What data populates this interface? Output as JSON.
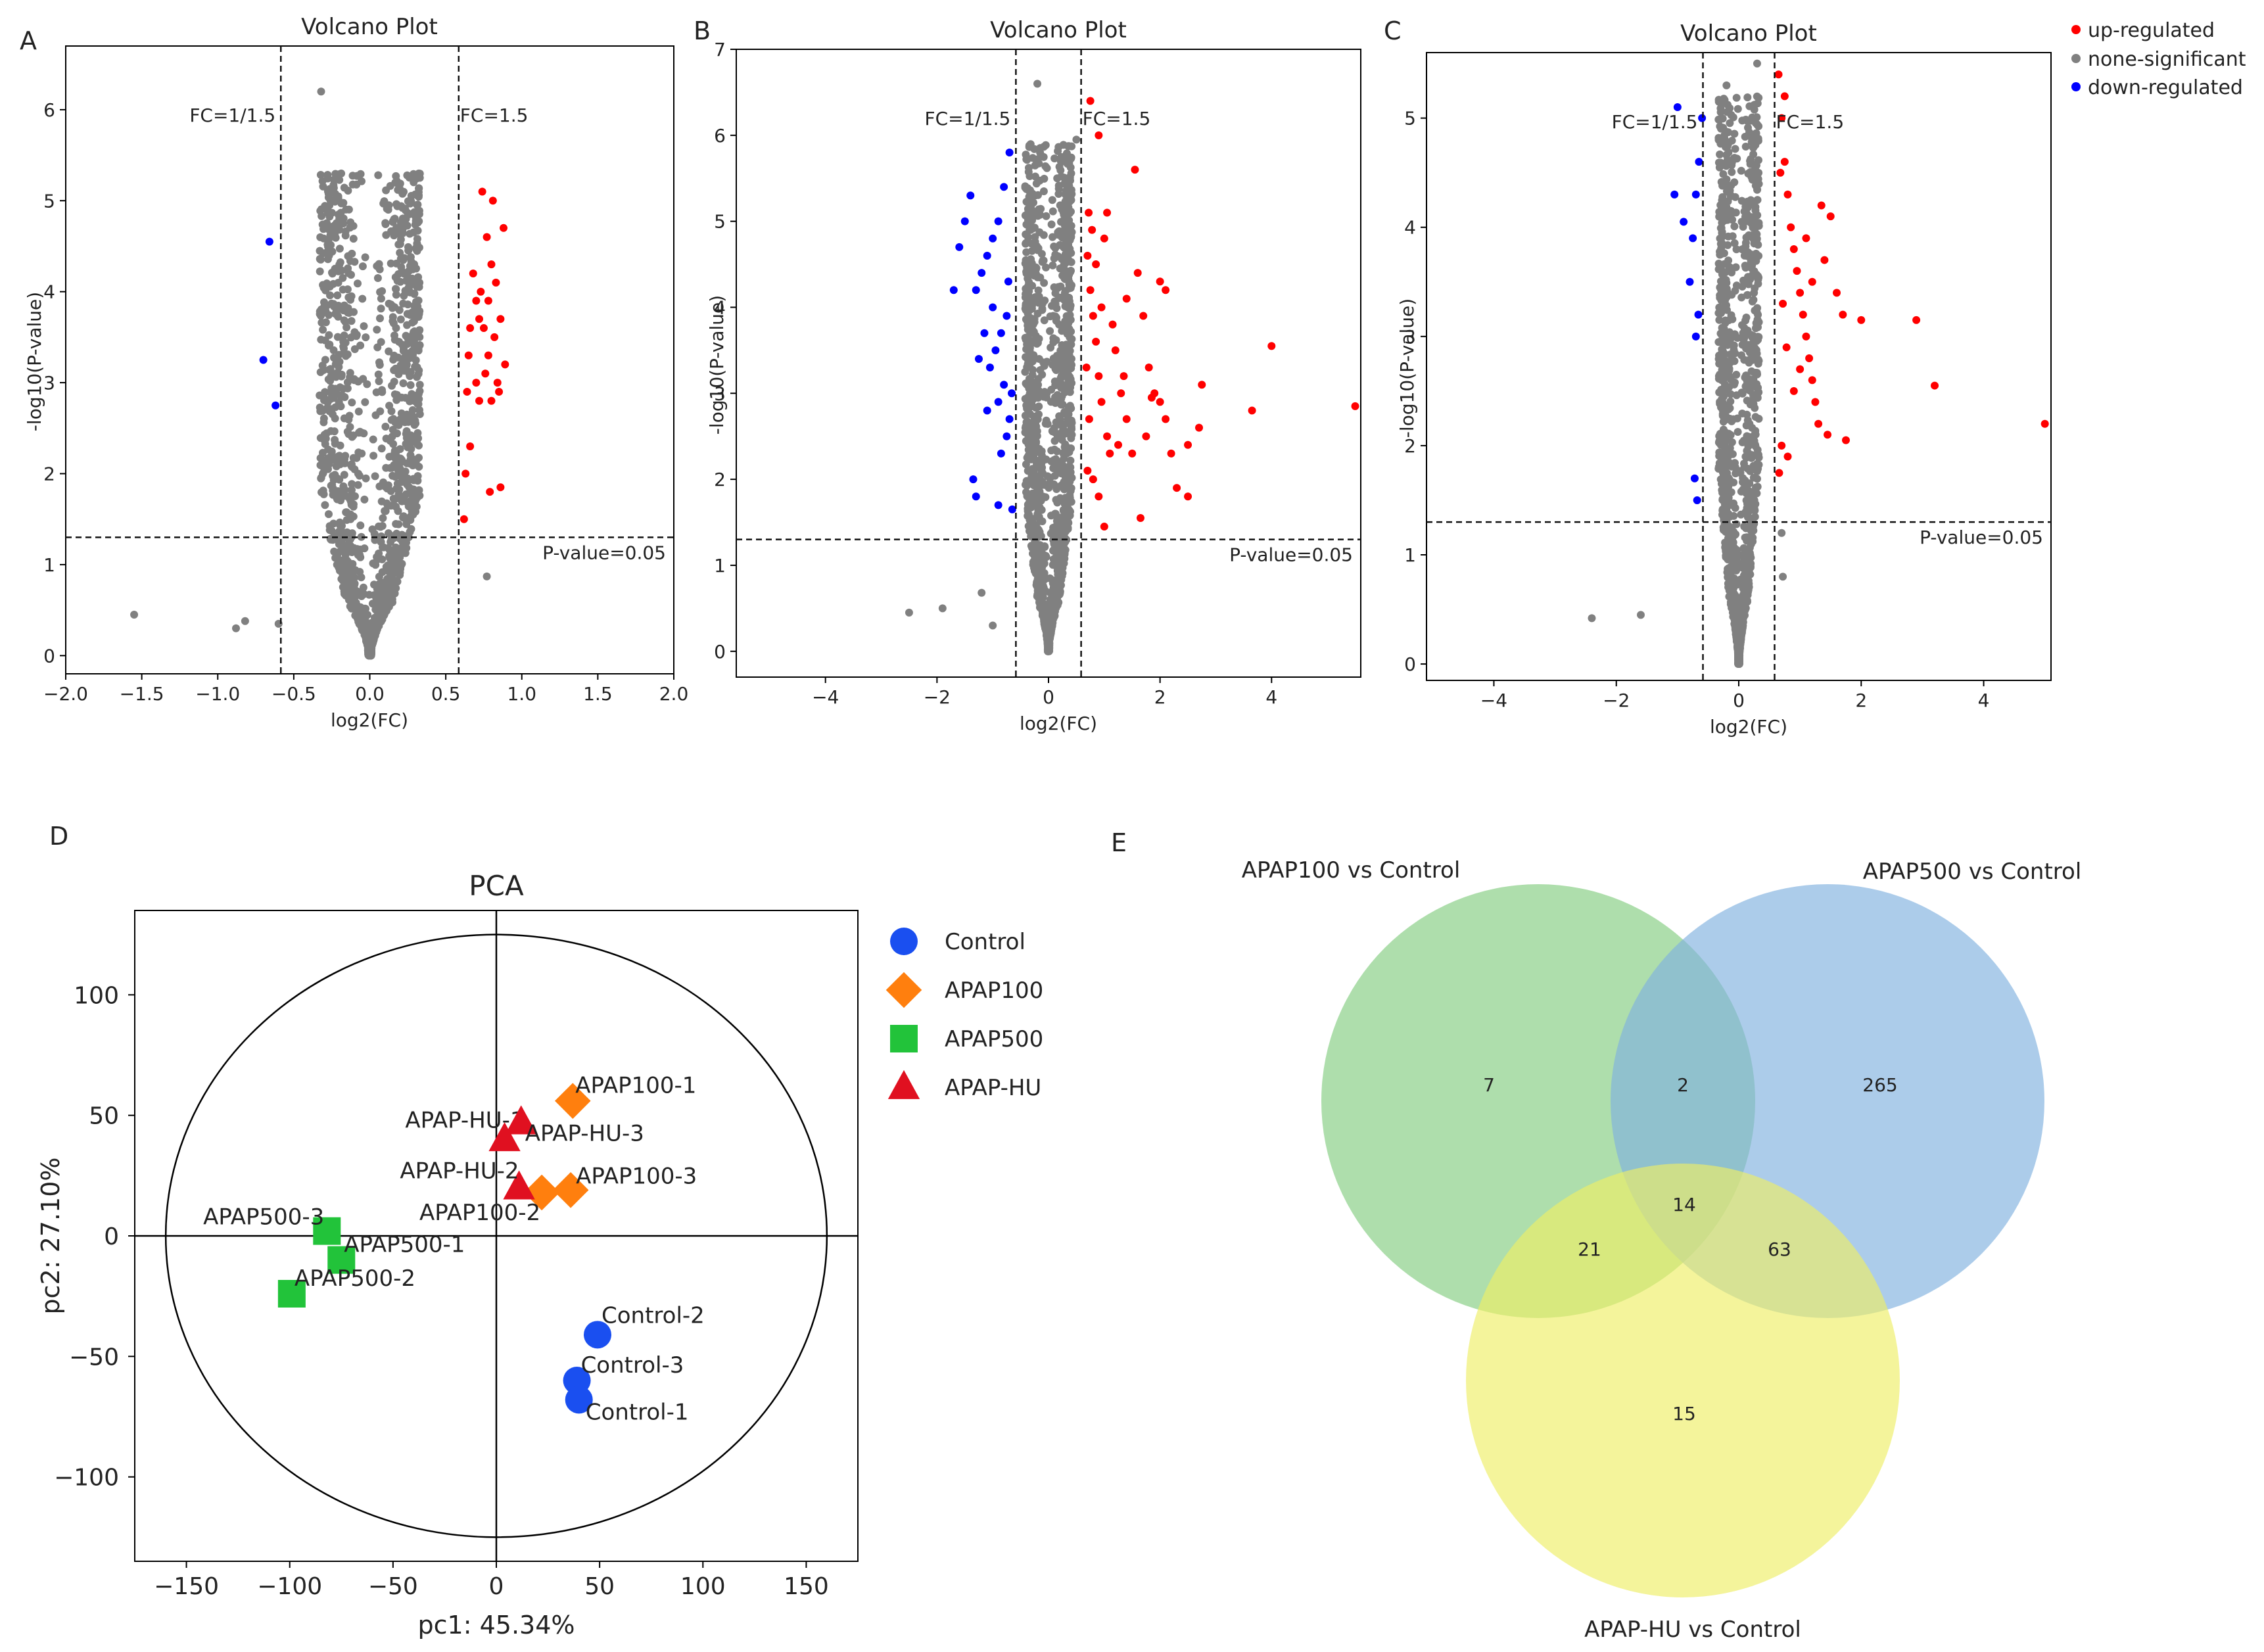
{
  "chart_data": [
    {
      "panel": "A",
      "type": "scatter",
      "title": "Volcano Plot",
      "xlabel": "log2(FC)",
      "ylabel": "-log10(P-value)",
      "xlim": [
        -2.0,
        2.0
      ],
      "ylim": [
        -0.2,
        6.7
      ],
      "xticks": [
        -2.0,
        -1.5,
        -1.0,
        -0.5,
        0.0,
        0.5,
        1.0,
        1.5,
        2.0
      ],
      "xtick_labels": [
        "−2.0",
        "−1.5",
        "−1.0",
        "−0.5",
        "0.0",
        "0.5",
        "1.0",
        "1.5",
        "2.0"
      ],
      "yticks": [
        0,
        1,
        2,
        3,
        4,
        5,
        6
      ],
      "fc_lines": [
        -0.585,
        0.585
      ],
      "fc_labels": [
        "FC=1/1.5",
        "FC=1.5"
      ],
      "p_line": 1.3,
      "p_label": "P-value=0.05",
      "ns_cloud": {
        "xspread": 0.33,
        "ymax": 5.3,
        "count": 1400
      },
      "up": [
        [
          0.62,
          1.5
        ],
        [
          0.63,
          2.0
        ],
        [
          0.64,
          2.9
        ],
        [
          0.65,
          3.3
        ],
        [
          0.66,
          3.6
        ],
        [
          0.68,
          4.2
        ],
        [
          0.7,
          3.9
        ],
        [
          0.7,
          3.0
        ],
        [
          0.72,
          2.8
        ],
        [
          0.73,
          4.0
        ],
        [
          0.74,
          5.1
        ],
        [
          0.75,
          3.6
        ],
        [
          0.76,
          3.1
        ],
        [
          0.77,
          4.6
        ],
        [
          0.78,
          3.9
        ],
        [
          0.78,
          3.3
        ],
        [
          0.8,
          4.3
        ],
        [
          0.8,
          2.8
        ],
        [
          0.81,
          5.0
        ],
        [
          0.82,
          3.5
        ],
        [
          0.83,
          4.1
        ],
        [
          0.84,
          3.0
        ],
        [
          0.85,
          2.9
        ],
        [
          0.86,
          3.7
        ],
        [
          0.88,
          4.7
        ],
        [
          0.89,
          3.2
        ],
        [
          0.79,
          1.8
        ],
        [
          0.86,
          1.85
        ],
        [
          0.66,
          2.3
        ],
        [
          0.72,
          3.7
        ]
      ],
      "down": [
        [
          -0.66,
          4.55
        ],
        [
          -0.7,
          3.25
        ],
        [
          -0.62,
          2.75
        ]
      ],
      "ns_extra": [
        [
          -1.55,
          0.45
        ],
        [
          -0.88,
          0.3
        ],
        [
          -0.82,
          0.38
        ],
        [
          -0.6,
          0.35
        ],
        [
          -0.32,
          6.2
        ],
        [
          0.77,
          0.87
        ]
      ]
    },
    {
      "panel": "B",
      "type": "scatter",
      "title": "Volcano Plot",
      "xlabel": "log2(FC)",
      "ylabel": "-log10(P-value)",
      "xlim": [
        -5.6,
        5.6
      ],
      "ylim": [
        -0.3,
        7.0
      ],
      "xticks": [
        -4,
        -2,
        0,
        2,
        4
      ],
      "xtick_labels": [
        "−4",
        "−2",
        "0",
        "2",
        "4"
      ],
      "yticks": [
        0,
        1,
        2,
        3,
        4,
        5,
        6,
        7
      ],
      "fc_lines": [
        -0.585,
        0.585
      ],
      "fc_labels": [
        "FC=1/1.5",
        "FC=1.5"
      ],
      "p_line": 1.3,
      "p_label": "P-value=0.05",
      "ns_cloud": {
        "xspread": 0.42,
        "ymax": 5.9,
        "count": 1400
      },
      "up": [
        [
          0.7,
          4.6
        ],
        [
          0.75,
          4.2
        ],
        [
          0.8,
          3.9
        ],
        [
          0.85,
          3.6
        ],
        [
          0.9,
          3.2
        ],
        [
          0.95,
          2.9
        ],
        [
          1.0,
          4.8
        ],
        [
          1.05,
          2.5
        ],
        [
          1.1,
          2.3
        ],
        [
          0.7,
          2.1
        ],
        [
          0.8,
          2.0
        ],
        [
          0.9,
          1.8
        ],
        [
          1.2,
          3.5
        ],
        [
          1.3,
          3.0
        ],
        [
          1.4,
          2.7
        ],
        [
          1.5,
          2.3
        ],
        [
          1.6,
          4.4
        ],
        [
          1.7,
          3.9
        ],
        [
          1.8,
          3.3
        ],
        [
          1.9,
          3.0
        ],
        [
          2.0,
          2.9
        ],
        [
          2.1,
          2.7
        ],
        [
          2.2,
          2.3
        ],
        [
          2.3,
          1.9
        ],
        [
          2.5,
          1.8
        ],
        [
          0.75,
          6.4
        ],
        [
          0.9,
          6.0
        ],
        [
          1.55,
          5.6
        ],
        [
          2.0,
          4.3
        ],
        [
          2.1,
          4.2
        ],
        [
          4.0,
          3.55
        ],
        [
          3.65,
          2.8
        ],
        [
          5.5,
          2.85
        ],
        [
          1.75,
          2.5
        ],
        [
          1.65,
          1.55
        ],
        [
          1.0,
          1.45
        ],
        [
          2.75,
          3.1
        ],
        [
          0.72,
          5.1
        ],
        [
          0.78,
          4.9
        ],
        [
          0.85,
          4.5
        ],
        [
          0.95,
          4.0
        ],
        [
          1.15,
          3.8
        ],
        [
          1.25,
          2.4
        ],
        [
          1.35,
          3.2
        ],
        [
          2.5,
          2.4
        ],
        [
          2.7,
          2.6
        ],
        [
          0.68,
          3.3
        ],
        [
          0.73,
          2.7
        ],
        [
          1.05,
          5.1
        ],
        [
          1.4,
          4.1
        ],
        [
          1.85,
          2.95
        ]
      ],
      "down": [
        [
          -0.7,
          5.8
        ],
        [
          -0.8,
          5.4
        ],
        [
          -0.9,
          5.0
        ],
        [
          -1.0,
          4.8
        ],
        [
          -1.1,
          4.6
        ],
        [
          -1.2,
          4.4
        ],
        [
          -1.3,
          4.2
        ],
        [
          -0.75,
          3.9
        ],
        [
          -0.85,
          3.7
        ],
        [
          -0.95,
          3.5
        ],
        [
          -1.05,
          3.3
        ],
        [
          -0.8,
          3.1
        ],
        [
          -0.9,
          2.9
        ],
        [
          -0.7,
          2.7
        ],
        [
          -0.75,
          2.5
        ],
        [
          -0.85,
          2.3
        ],
        [
          -1.4,
          5.3
        ],
        [
          -1.5,
          5.0
        ],
        [
          -1.6,
          4.7
        ],
        [
          -1.7,
          4.2
        ],
        [
          -0.9,
          1.7
        ],
        [
          -1.35,
          2.0
        ],
        [
          -1.3,
          1.8
        ],
        [
          -0.65,
          1.65
        ],
        [
          -0.72,
          4.3
        ],
        [
          -1.15,
          3.7
        ],
        [
          -1.25,
          3.4
        ],
        [
          -0.66,
          3.0
        ],
        [
          -1.0,
          4.0
        ],
        [
          -1.1,
          2.8
        ]
      ],
      "ns_extra": [
        [
          -2.5,
          0.45
        ],
        [
          -1.9,
          0.5
        ],
        [
          -1.2,
          0.68
        ],
        [
          -0.2,
          6.6
        ],
        [
          0.5,
          5.95
        ],
        [
          -1.0,
          0.3
        ]
      ]
    },
    {
      "panel": "C",
      "type": "scatter",
      "title": "Volcano Plot",
      "xlabel": "log2(FC)",
      "ylabel": "-log10(P-value)",
      "xlim": [
        -5.1,
        5.1
      ],
      "ylim": [
        -0.15,
        5.6
      ],
      "xticks": [
        -4,
        -2,
        0,
        2,
        4
      ],
      "xtick_labels": [
        "−4",
        "−2",
        "0",
        "2",
        "4"
      ],
      "yticks": [
        0,
        1,
        2,
        3,
        4,
        5
      ],
      "fc_lines": [
        -0.585,
        0.585
      ],
      "fc_labels": [
        "FC=1/1.5",
        "FC=1.5"
      ],
      "p_line": 1.3,
      "p_label": "P-value=0.05",
      "ns_cloud": {
        "xspread": 0.33,
        "ymax": 5.2,
        "count": 1200
      },
      "up": [
        [
          0.65,
          5.4
        ],
        [
          0.7,
          5.0
        ],
        [
          0.75,
          4.6
        ],
        [
          0.8,
          4.3
        ],
        [
          0.85,
          4.0
        ],
        [
          0.9,
          3.8
        ],
        [
          0.95,
          3.6
        ],
        [
          1.0,
          3.4
        ],
        [
          1.05,
          3.2
        ],
        [
          1.1,
          3.0
        ],
        [
          1.15,
          2.8
        ],
        [
          1.2,
          2.6
        ],
        [
          1.25,
          2.4
        ],
        [
          1.3,
          2.2
        ],
        [
          0.7,
          2.0
        ],
        [
          0.8,
          1.9
        ],
        [
          1.35,
          4.2
        ],
        [
          1.5,
          4.1
        ],
        [
          1.4,
          3.7
        ],
        [
          1.6,
          3.4
        ],
        [
          1.7,
          3.2
        ],
        [
          2.0,
          3.15
        ],
        [
          2.9,
          3.15
        ],
        [
          3.2,
          2.55
        ],
        [
          5.0,
          2.2
        ],
        [
          1.75,
          2.05
        ],
        [
          1.45,
          2.1
        ],
        [
          0.68,
          4.5
        ],
        [
          0.72,
          3.3
        ],
        [
          0.78,
          2.9
        ],
        [
          0.9,
          2.5
        ],
        [
          1.0,
          2.7
        ],
        [
          1.1,
          3.9
        ],
        [
          1.2,
          3.5
        ],
        [
          0.66,
          1.75
        ],
        [
          0.75,
          5.2
        ]
      ],
      "down": [
        [
          -0.6,
          5.0
        ],
        [
          -0.65,
          4.6
        ],
        [
          -0.7,
          4.3
        ],
        [
          -0.75,
          3.9
        ],
        [
          -0.8,
          3.5
        ],
        [
          -0.66,
          3.2
        ],
        [
          -0.7,
          3.0
        ],
        [
          -0.72,
          1.7
        ],
        [
          -0.68,
          1.5
        ],
        [
          -1.0,
          5.1
        ],
        [
          -1.05,
          4.3
        ],
        [
          -0.9,
          4.05
        ]
      ],
      "ns_extra": [
        [
          -2.4,
          0.42
        ],
        [
          -1.6,
          0.45
        ],
        [
          -0.2,
          5.3
        ],
        [
          0.3,
          5.5
        ],
        [
          0.7,
          1.2
        ],
        [
          0.72,
          0.8
        ]
      ]
    },
    {
      "panel": "D",
      "type": "scatter",
      "title": "PCA",
      "xlabel": "pc1: 45.34%",
      "ylabel": "pc2: 27.10%",
      "xlim": [
        -175,
        175
      ],
      "ylim": [
        -135,
        135
      ],
      "xticks": [
        -150,
        -100,
        -50,
        0,
        50,
        100,
        150
      ],
      "xtick_labels": [
        "−150",
        "−100",
        "−50",
        "0",
        "50",
        "100",
        "150"
      ],
      "yticks": [
        -100,
        -50,
        0,
        50,
        100
      ],
      "ytick_labels": [
        "−100",
        "−50",
        "0",
        "50",
        "100"
      ],
      "ellipse": {
        "rx": 160,
        "ry": 125
      },
      "series": [
        {
          "name": "Control",
          "color": "#1a4ff0",
          "marker": "circle",
          "points": [
            {
              "label": "Control-2",
              "x": 49,
              "y": -41
            },
            {
              "label": "Control-3",
              "x": 39,
              "y": -60
            },
            {
              "label": "Control-1",
              "x": 40,
              "y": -68
            }
          ]
        },
        {
          "name": "APAP100",
          "color": "#ff7f0e",
          "marker": "diamond",
          "points": [
            {
              "label": "APAP100-1",
              "x": 37,
              "y": 56
            },
            {
              "label": "APAP100-3",
              "x": 36,
              "y": 19
            },
            {
              "label": "APAP100-2",
              "x": 22,
              "y": 18
            }
          ]
        },
        {
          "name": "APAP500",
          "color": "#22c33a",
          "marker": "square",
          "points": [
            {
              "label": "APAP500-3",
              "x": -82,
              "y": 2
            },
            {
              "label": "APAP500-1",
              "x": -75,
              "y": -10
            },
            {
              "label": "APAP500-2",
              "x": -99,
              "y": -24
            }
          ]
        },
        {
          "name": "APAP-HU",
          "color": "#e01020",
          "marker": "triangle",
          "points": [
            {
              "label": "APAP-HU-1",
              "x": 4,
              "y": 40
            },
            {
              "label": "APAP-HU-3",
              "x": 12,
              "y": 47
            },
            {
              "label": "APAP-HU-2",
              "x": 11,
              "y": 20
            }
          ]
        }
      ]
    },
    {
      "panel": "E",
      "type": "venn",
      "sets": [
        {
          "name": "APAP100 vs Control",
          "color": "#8fd18c"
        },
        {
          "name": "APAP500 vs Control",
          "color": "#7fb0de"
        },
        {
          "name": "APAP-HU vs Control",
          "color": "#eeee66"
        }
      ],
      "regions": {
        "only_a": "7",
        "a_b": "2",
        "only_b": "265",
        "a_b_c": "14",
        "a_c": "21",
        "b_c": "63",
        "only_c": "15"
      }
    }
  ],
  "legend": {
    "up_label": "up-regulated",
    "ns_label": "none-significant",
    "down_label": "down-regulated",
    "up_color": "#ff0000",
    "ns_color": "#808080",
    "down_color": "#0000ff"
  }
}
